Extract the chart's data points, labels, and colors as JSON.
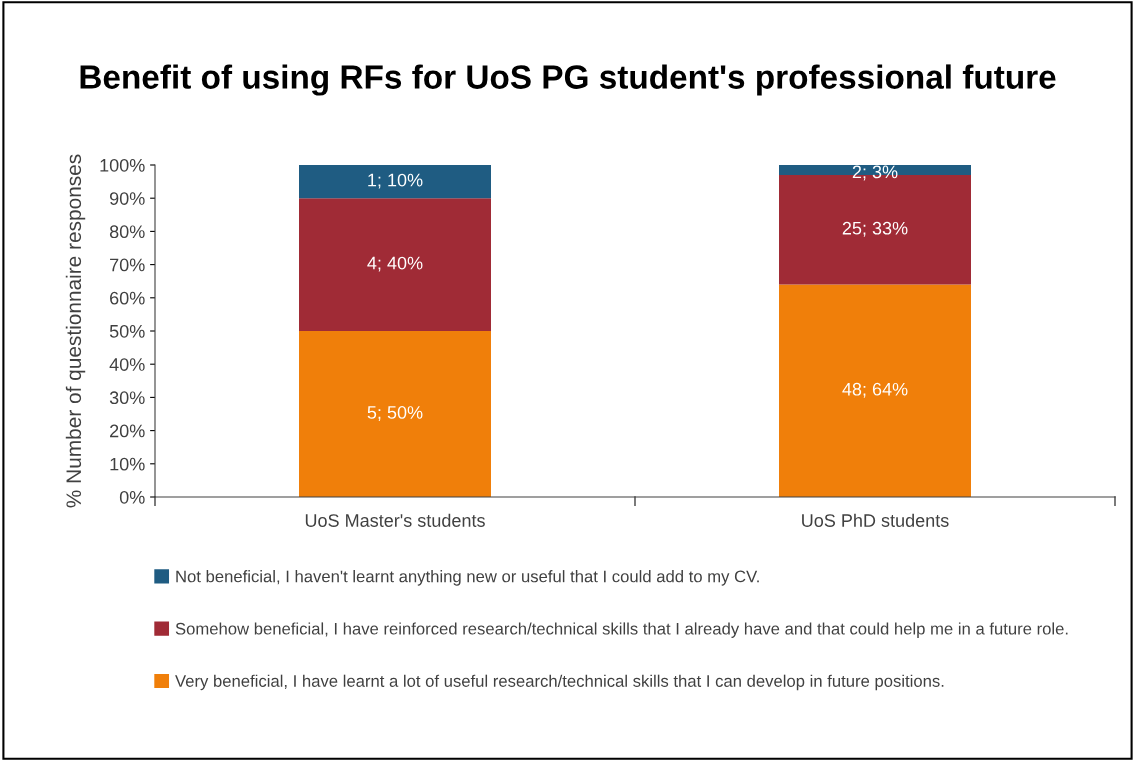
{
  "chart_data": {
    "type": "bar",
    "title": "Benefit of using RFs for UoS PG student's professional future",
    "ylabel": "% Number of questionnaire responses",
    "categories": [
      "UoS Master's students",
      "UoS PhD students"
    ],
    "stacked": true,
    "series": [
      {
        "name": "Very beneficial, I have learnt a lot of useful research/technical skills that I can develop in future positions.",
        "color": "#f07f0a",
        "values": [
          50,
          64
        ],
        "value_labels": [
          "5; 50%",
          "48; 64%"
        ]
      },
      {
        "name": "Somehow beneficial, I have reinforced research/technical skills that I already have and that could help me in a future role.",
        "color": "#a02b36",
        "values": [
          40,
          33
        ],
        "value_labels": [
          "4; 40%",
          "25; 33%"
        ]
      },
      {
        "name": "Not beneficial, I haven't learnt anything new or useful that I could add to my CV.",
        "color": "#1f5c82",
        "values": [
          10,
          3
        ],
        "value_labels": [
          "1; 10%",
          "2; 3%"
        ]
      }
    ],
    "ylim": [
      0,
      100
    ],
    "yticks": [
      {
        "value": 0,
        "label": "0%"
      },
      {
        "value": 10,
        "label": "10%"
      },
      {
        "value": 20,
        "label": "20%"
      },
      {
        "value": 30,
        "label": "30%"
      },
      {
        "value": 40,
        "label": "40%"
      },
      {
        "value": 50,
        "label": "50%"
      },
      {
        "value": 60,
        "label": "60%"
      },
      {
        "value": 70,
        "label": "70%"
      },
      {
        "value": 80,
        "label": "80%"
      },
      {
        "value": 90,
        "label": "90%"
      },
      {
        "value": 100,
        "label": "100%"
      }
    ],
    "grid": false,
    "legend": "bottom"
  }
}
